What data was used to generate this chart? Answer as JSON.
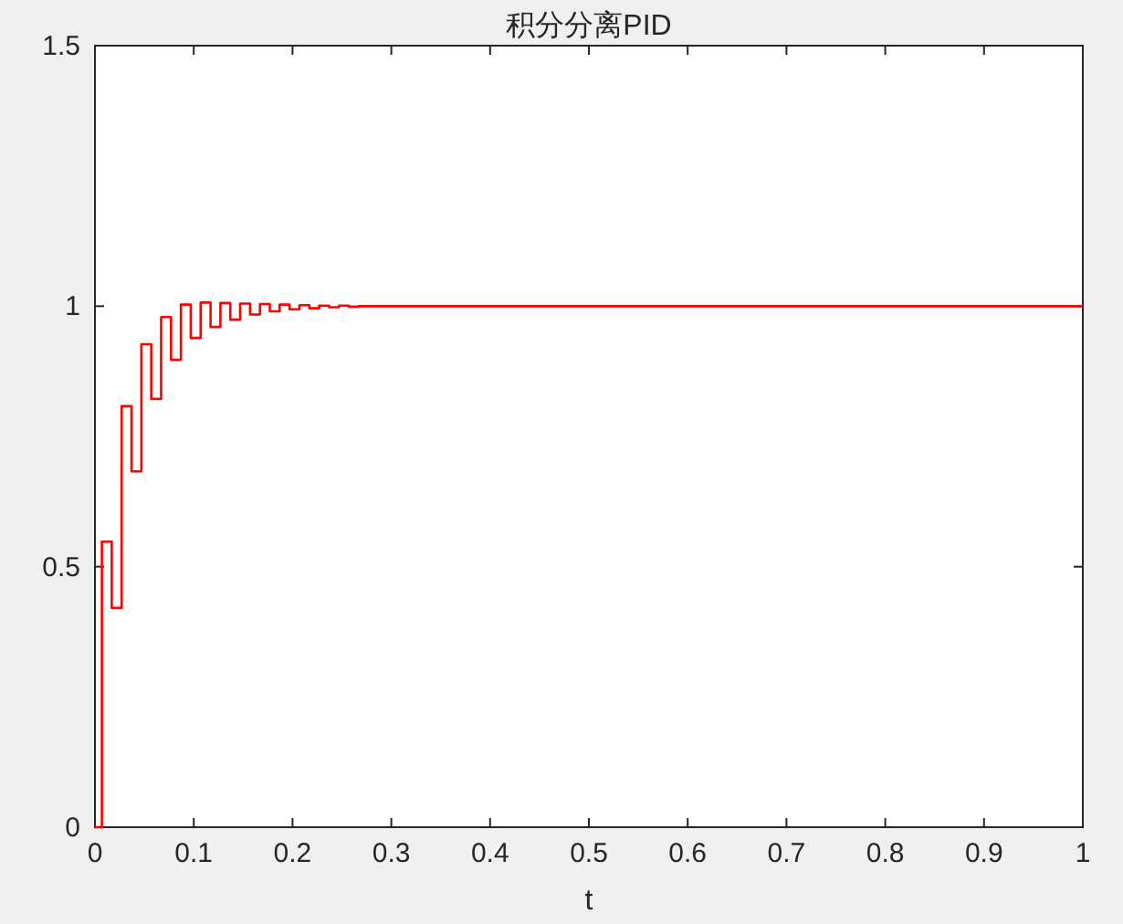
{
  "chart_data": {
    "type": "step",
    "title": "积分分离PID",
    "xlabel": "t",
    "x": [
      0,
      0.007,
      0.017,
      0.027,
      0.037,
      0.047,
      0.057,
      0.067,
      0.077,
      0.087,
      0.097,
      0.107,
      0.117,
      0.127,
      0.137,
      0.147,
      0.157,
      0.167,
      0.177,
      0.187,
      0.197,
      0.207,
      0.217,
      0.227,
      0.237,
      0.247,
      0.257,
      0.267,
      1
    ],
    "series": [
      {
        "color": "#ff0000",
        "values": [
          0,
          0.548,
          0.421,
          0.808,
          0.683,
          0.927,
          0.822,
          0.979,
          0.897,
          1.003,
          0.939,
          1.007,
          0.96,
          1.006,
          0.974,
          1.005,
          0.984,
          1.004,
          0.99,
          1.003,
          0.994,
          1.002,
          0.996,
          1.001,
          0.998,
          1.001,
          0.999,
          1,
          1
        ]
      }
    ],
    "xlim": [
      0,
      1
    ],
    "ylim": [
      0,
      1.5
    ],
    "xticks": [
      0,
      0.1,
      0.2,
      0.3,
      0.4,
      0.5,
      0.6,
      0.7,
      0.8,
      0.9,
      1
    ],
    "yticks": [
      0,
      0.5,
      1,
      1.5
    ]
  }
}
